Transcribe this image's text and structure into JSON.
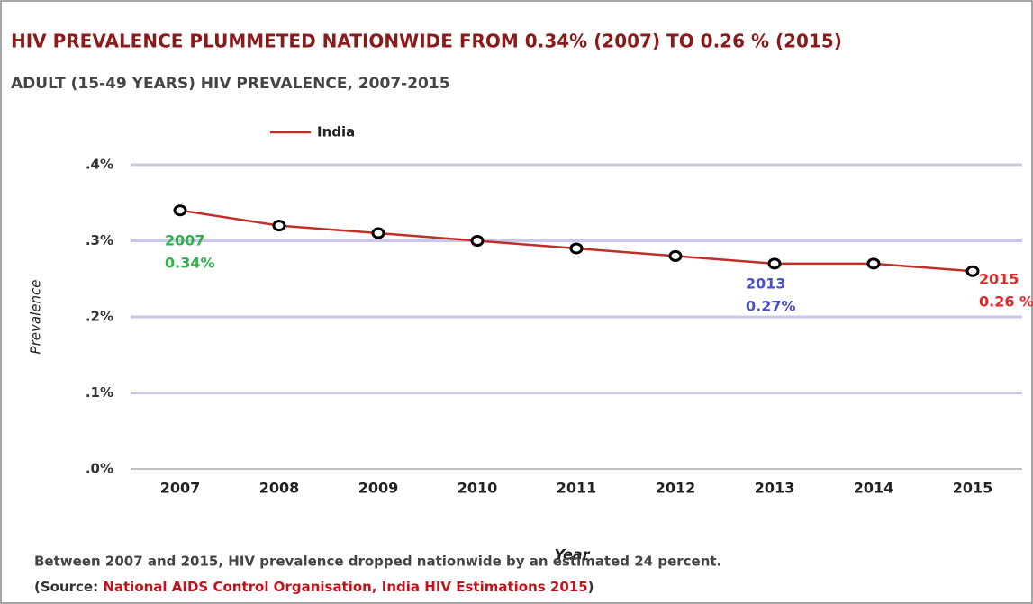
{
  "chart_data": {
    "type": "line",
    "title": "HIV PREVALENCE PLUMMETED NATIONWIDE FROM 0.34% (2007) TO 0.26 % (2015)",
    "subtitle": "ADULT (15-49 YEARS) HIV PREVALENCE, 2007-2015",
    "y_label": "Prevalence",
    "x_label": "Year",
    "categories": [
      "2007",
      "2008",
      "2009",
      "2010",
      "2011",
      "2012",
      "2013",
      "2014",
      "2015"
    ],
    "series": [
      {
        "name": "India",
        "color": "#c0302a",
        "values": [
          0.34,
          0.32,
          0.31,
          0.3,
          0.29,
          0.28,
          0.27,
          0.27,
          0.26
        ]
      }
    ],
    "ylim": [
      0,
      0.4
    ],
    "yticks": [
      {
        "value": 0,
        "label": ".0%"
      },
      {
        "value": 0.1,
        "label": ".1%"
      },
      {
        "value": 0.2,
        "label": ".2%"
      },
      {
        "value": 0.3,
        "label": ".3%"
      },
      {
        "value": 0.4,
        "label": ".4%"
      }
    ],
    "grid": true,
    "legend": "top",
    "annotations": [
      {
        "lines": [
          "2007",
          "0.34%"
        ],
        "color": "#2db34a"
      },
      {
        "lines": [
          "2013",
          "0.27%"
        ],
        "color": "#4a4fd0"
      },
      {
        "lines": [
          "2015",
          "0.26 %"
        ],
        "color": "#e0282a"
      }
    ],
    "footnote": "Between 2007 and 2015, HIV prevalence dropped nationwide by an estimated 24 percent.",
    "source": [
      {
        "text": "(Source: ",
        "color": "#333333"
      },
      {
        "text": "National AIDS Control  Organisation, India HIV Estimations 2015",
        "color": "#c0141c"
      },
      {
        "text": ")",
        "color": "#333333"
      }
    ]
  }
}
